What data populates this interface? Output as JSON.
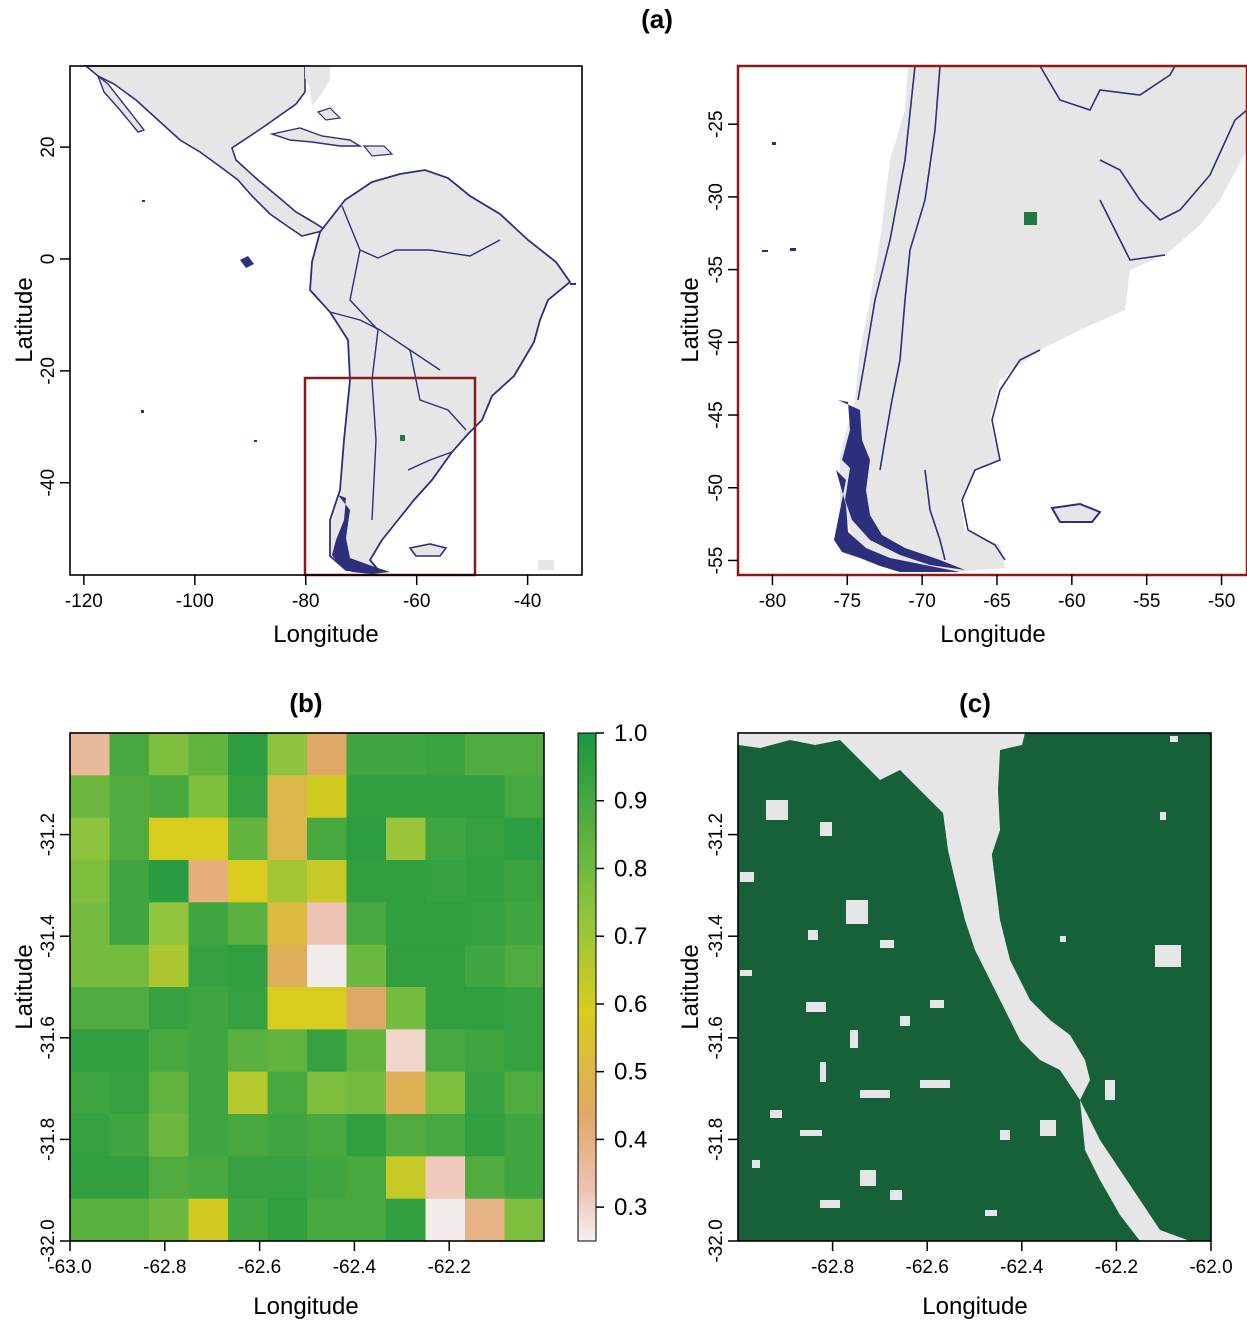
{
  "panels": {
    "a": {
      "title": "(a)",
      "left_map": {
        "xlabel": "Longitude",
        "ylabel": "Latitude",
        "xticks": [
          -120,
          -100,
          -80,
          -60,
          -40
        ],
        "xtick_labels": [
          "-120",
          "-100",
          "-80",
          "-60",
          "-40"
        ],
        "yticks": [
          20,
          0,
          -20,
          -40
        ],
        "ytick_labels": [
          "20",
          "0",
          "-20",
          "-40"
        ],
        "extent": {
          "lon": [
            -122.5,
            -30.2
          ],
          "lat": [
            -56.5,
            34.5
          ]
        },
        "inset_box": {
          "lon": [
            -80,
            -50
          ],
          "lat": [
            -56,
            -21
          ]
        },
        "highlight_cell": {
          "lon": -62.5,
          "lat": -31.5
        }
      },
      "right_map": {
        "xlabel": "Longitude",
        "ylabel": "Latitude",
        "xticks": [
          -80,
          -75,
          -70,
          -65,
          -60,
          -55,
          -50
        ],
        "xtick_labels": [
          "-80",
          "-75",
          "-70",
          "-65",
          "-60",
          "-55",
          "-50"
        ],
        "yticks": [
          -25,
          -30,
          -35,
          -40,
          -45,
          -50,
          -55
        ],
        "ytick_labels": [
          "-25",
          "-30",
          "-35",
          "-40",
          "-45",
          "-50",
          "-55"
        ],
        "extent": {
          "lon": [
            -82.3,
            -48.3
          ],
          "lat": [
            -56,
            -21
          ]
        },
        "highlight_cell": {
          "lon": -62.5,
          "lat": -31.5
        }
      }
    },
    "b": {
      "title": "(b)",
      "xlabel": "Longitude",
      "ylabel": "Latitude",
      "xticks": [
        -63.0,
        -62.8,
        -62.6,
        -62.4,
        -62.2
      ],
      "xtick_labels": [
        "-63.0",
        "-62.8",
        "-62.6",
        "-62.4",
        "-62.2"
      ],
      "yticks": [
        -31.2,
        -31.4,
        -31.6,
        -31.8,
        -32.0
      ],
      "ytick_labels": [
        "-31.2",
        "-31.4",
        "-31.6",
        "-31.8",
        "-32.0"
      ],
      "colorbar_ticks": [
        1.0,
        0.9,
        0.8,
        0.7,
        0.6,
        0.5,
        0.4,
        0.3
      ],
      "colorbar_tick_labels": [
        "1.0",
        "0.9",
        "0.8",
        "0.7",
        "0.6",
        "0.5",
        "0.4",
        "0.3"
      ],
      "colorbar_range": [
        0.25,
        1.0
      ],
      "colors": {
        "high": "#1a9641",
        "mid": "#d9cc1e",
        "low_mid": "#e0a866",
        "low": "#f2f2f2"
      }
    },
    "c": {
      "title": "(c)",
      "xlabel": "Longitude",
      "ylabel": "Latitude",
      "xticks": [
        -62.8,
        -62.6,
        -62.4,
        -62.2,
        -62.0
      ],
      "xtick_labels": [
        "-62.8",
        "-62.6",
        "-62.4",
        "-62.2",
        "-62.0"
      ],
      "yticks": [
        -31.2,
        -31.4,
        -31.6,
        -31.8,
        -32.0
      ],
      "ytick_labels": [
        "-31.2",
        "-31.4",
        "-31.6",
        "-31.8",
        "-32.0"
      ],
      "colors": {
        "forest": "#17613a",
        "nonforest": "#e6e6e6"
      }
    }
  },
  "chart_data": [
    {
      "type": "heatmap",
      "title": "(b)",
      "xlabel": "Longitude",
      "ylabel": "Latitude",
      "xlim": [
        -63.0,
        -62.0
      ],
      "ylim": [
        -32.0,
        -31.0
      ],
      "rows": 12,
      "cols": 12,
      "values": [
        [
          0.37,
          0.9,
          0.78,
          0.84,
          0.96,
          0.75,
          0.45,
          0.92,
          0.92,
          0.93,
          0.88,
          0.88
        ],
        [
          0.82,
          0.88,
          0.9,
          0.78,
          0.94,
          0.5,
          0.6,
          0.95,
          0.95,
          0.95,
          0.95,
          0.9
        ],
        [
          0.75,
          0.88,
          0.58,
          0.58,
          0.84,
          0.5,
          0.9,
          0.96,
          0.72,
          0.92,
          0.94,
          0.96
        ],
        [
          0.78,
          0.92,
          0.97,
          0.42,
          0.58,
          0.7,
          0.62,
          0.95,
          0.95,
          0.94,
          0.95,
          0.93
        ],
        [
          0.8,
          0.92,
          0.74,
          0.92,
          0.86,
          0.52,
          0.33,
          0.9,
          0.95,
          0.95,
          0.94,
          0.92
        ],
        [
          0.8,
          0.8,
          0.68,
          0.94,
          0.95,
          0.47,
          0.26,
          0.82,
          0.95,
          0.95,
          0.92,
          0.88
        ],
        [
          0.88,
          0.88,
          0.94,
          0.92,
          0.94,
          0.58,
          0.58,
          0.45,
          0.8,
          0.95,
          0.95,
          0.94
        ],
        [
          0.95,
          0.95,
          0.9,
          0.92,
          0.86,
          0.84,
          0.94,
          0.84,
          0.3,
          0.9,
          0.92,
          0.94
        ],
        [
          0.92,
          0.94,
          0.84,
          0.92,
          0.66,
          0.9,
          0.78,
          0.8,
          0.48,
          0.78,
          0.94,
          0.88
        ],
        [
          0.94,
          0.92,
          0.82,
          0.92,
          0.9,
          0.92,
          0.9,
          0.95,
          0.88,
          0.9,
          0.95,
          0.92
        ],
        [
          0.95,
          0.95,
          0.88,
          0.9,
          0.94,
          0.94,
          0.92,
          0.9,
          0.62,
          0.32,
          0.88,
          0.92
        ],
        [
          0.86,
          0.86,
          0.82,
          0.6,
          0.92,
          0.95,
          0.9,
          0.9,
          0.95,
          0.26,
          0.4,
          0.78
        ]
      ]
    }
  ]
}
